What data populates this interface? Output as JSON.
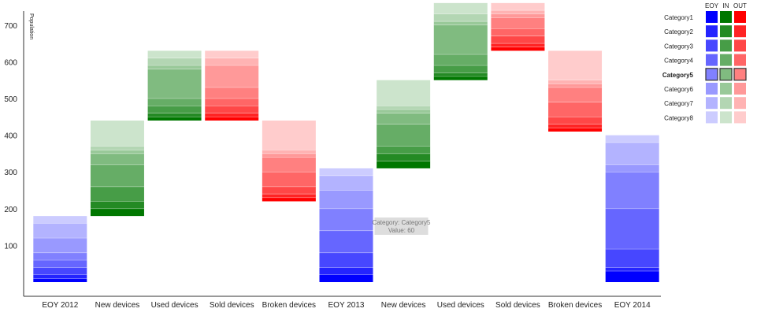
{
  "chart_data": {
    "type": "bar",
    "subtype": "waterfall-stacked",
    "ylabel": "Population",
    "ylim": [
      0,
      730
    ],
    "yticks": [
      100,
      200,
      300,
      400,
      500,
      600,
      700
    ],
    "grid": false,
    "categories": [
      "EOY 2012",
      "New devices",
      "Used devices",
      "Sold devices",
      "Broken devices",
      "EOY 2013",
      "New devices",
      "Used devices",
      "Sold devices",
      "Broken devices",
      "EOY 2014"
    ],
    "legend": {
      "placement": "top-right",
      "columns": [
        "EOY",
        "IN",
        "OUT"
      ],
      "entries": [
        "Category1",
        "Category2",
        "Category3",
        "Category4",
        "Category5",
        "Category6",
        "Category7",
        "Category8"
      ],
      "highlighted": "Category5"
    },
    "column_kinds": [
      "EOY",
      "IN",
      "IN",
      "OUT",
      "OUT",
      "EOY",
      "IN",
      "IN",
      "OUT",
      "OUT",
      "EOY"
    ],
    "base_colors": {
      "EOY": "#0000ff",
      "IN": "#007700",
      "OUT": "#ff0000"
    },
    "series": [
      {
        "name": "Category1",
        "values": [
          10,
          20,
          10,
          10,
          10,
          20,
          20,
          10,
          10,
          10,
          30
        ]
      },
      {
        "name": "Category2",
        "values": [
          10,
          20,
          10,
          10,
          10,
          20,
          20,
          10,
          10,
          10,
          10
        ]
      },
      {
        "name": "Category3",
        "values": [
          20,
          40,
          20,
          20,
          20,
          40,
          20,
          20,
          20,
          20,
          50
        ]
      },
      {
        "name": "Category4",
        "values": [
          20,
          60,
          20,
          20,
          40,
          60,
          60,
          30,
          20,
          40,
          110
        ]
      },
      {
        "name": "Category5",
        "values": [
          20,
          30,
          80,
          30,
          40,
          60,
          30,
          80,
          30,
          40,
          100
        ]
      },
      {
        "name": "Category6",
        "values": [
          40,
          10,
          10,
          60,
          10,
          50,
          10,
          10,
          10,
          10,
          20
        ]
      },
      {
        "name": "Category7",
        "values": [
          40,
          10,
          20,
          20,
          10,
          40,
          10,
          20,
          10,
          10,
          60
        ]
      },
      {
        "name": "Category8",
        "values": [
          20,
          70,
          20,
          20,
          80,
          20,
          70,
          30,
          20,
          80,
          20
        ]
      }
    ],
    "tooltip": {
      "series": "Category5",
      "category_index": 5,
      "line1": "Category: Category5",
      "line2": "Value: 60"
    }
  }
}
